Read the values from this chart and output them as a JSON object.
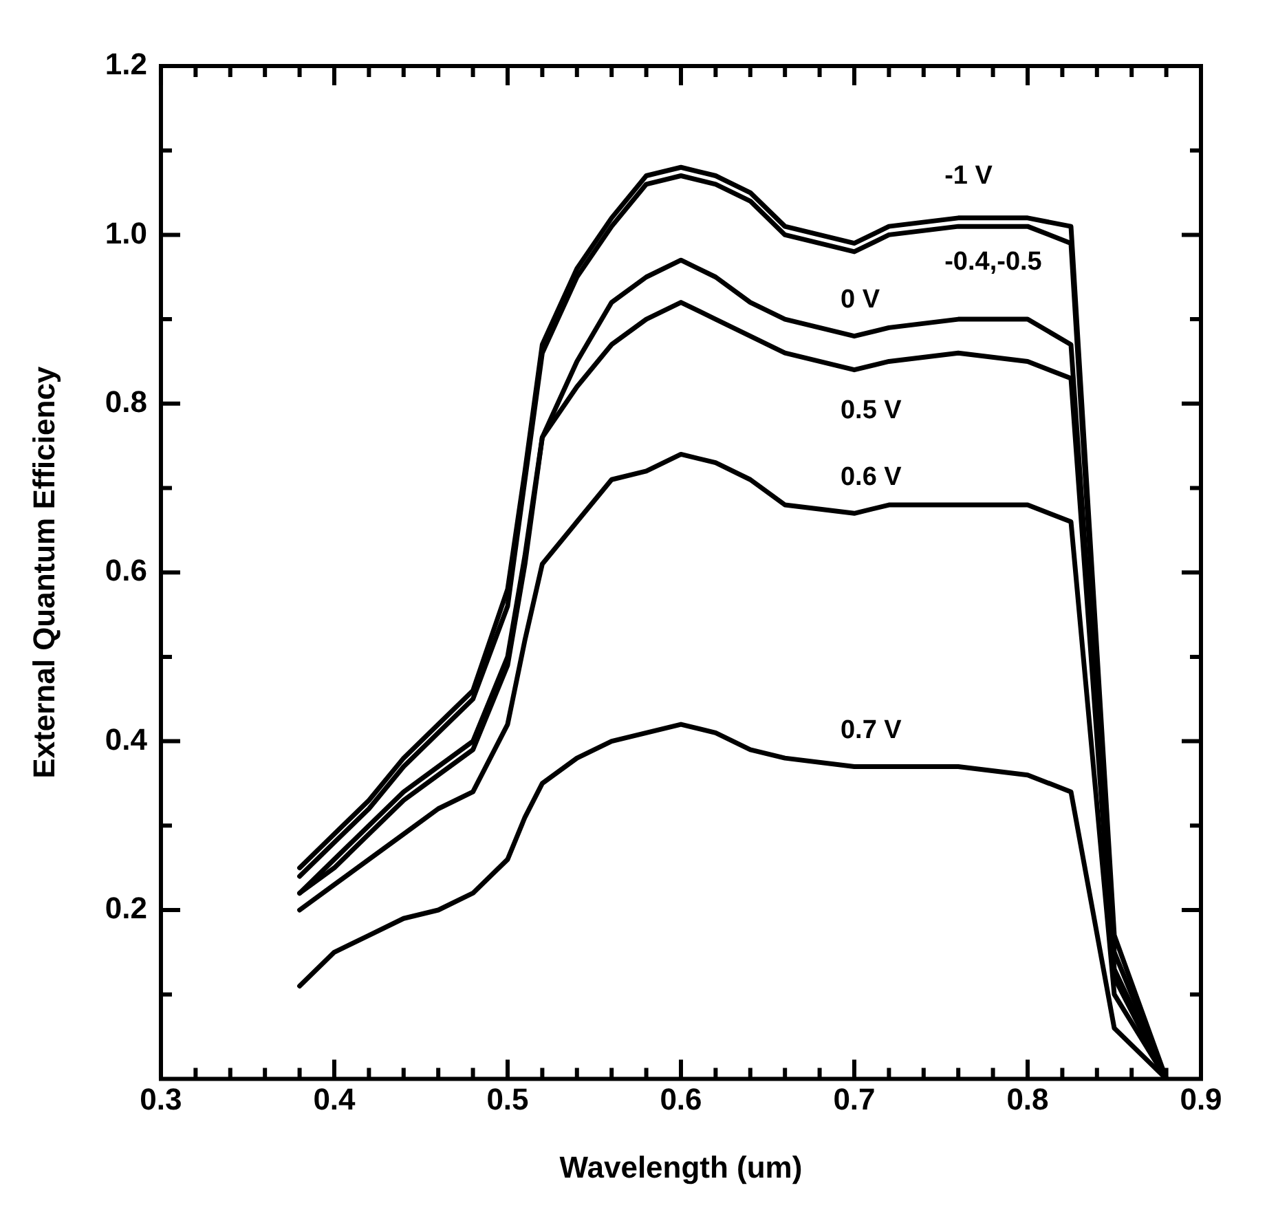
{
  "chart_data": {
    "type": "line",
    "xlabel": "Wavelength (um)",
    "ylabel": "External Quantum Efficiency",
    "x": [
      0.38,
      0.4,
      0.42,
      0.44,
      0.46,
      0.48,
      0.5,
      0.51,
      0.52,
      0.54,
      0.56,
      0.58,
      0.6,
      0.62,
      0.64,
      0.66,
      0.7,
      0.72,
      0.76,
      0.8,
      0.825,
      0.85,
      0.88
    ],
    "series": [
      {
        "name": "-1 V",
        "color": "#000000",
        "values": [
          0.25,
          0.29,
          0.33,
          0.38,
          0.42,
          0.46,
          0.58,
          0.72,
          0.87,
          0.96,
          1.02,
          1.07,
          1.08,
          1.07,
          1.05,
          1.01,
          0.99,
          1.01,
          1.02,
          1.02,
          1.01,
          0.17,
          0
        ]
      },
      {
        "name": "-0.4,-0.5",
        "color": "#000000",
        "values": [
          0.24,
          0.28,
          0.32,
          0.37,
          0.41,
          0.45,
          0.56,
          0.71,
          0.86,
          0.95,
          1.01,
          1.06,
          1.07,
          1.06,
          1.04,
          1,
          0.98,
          1,
          1.01,
          1.01,
          0.99,
          0.15,
          0
        ]
      },
      {
        "name": "0 V",
        "color": "#000000",
        "values": [
          0.22,
          0.26,
          0.3,
          0.34,
          0.37,
          0.4,
          0.5,
          0.62,
          0.76,
          0.85,
          0.92,
          0.95,
          0.97,
          0.95,
          0.92,
          0.9,
          0.88,
          0.89,
          0.9,
          0.9,
          0.87,
          0.13,
          0
        ]
      },
      {
        "name": "0.5 V",
        "color": "#000000",
        "values": [
          0.22,
          0.25,
          0.29,
          0.33,
          0.36,
          0.39,
          0.49,
          0.61,
          0.76,
          0.82,
          0.87,
          0.9,
          0.92,
          0.9,
          0.88,
          0.86,
          0.84,
          0.85,
          0.86,
          0.85,
          0.83,
          0.12,
          0
        ]
      },
      {
        "name": "0.6 V",
        "color": "#000000",
        "values": [
          0.2,
          0.23,
          0.26,
          0.29,
          0.32,
          0.34,
          0.42,
          0.52,
          0.61,
          0.66,
          0.71,
          0.72,
          0.74,
          0.73,
          0.71,
          0.68,
          0.67,
          0.68,
          0.68,
          0.68,
          0.66,
          0.1,
          0
        ]
      },
      {
        "name": "0.7 V",
        "color": "#000000",
        "values": [
          0.11,
          0.15,
          0.17,
          0.19,
          0.2,
          0.22,
          0.26,
          0.31,
          0.35,
          0.38,
          0.4,
          0.41,
          0.42,
          0.41,
          0.39,
          0.38,
          0.37,
          0.37,
          0.37,
          0.36,
          0.34,
          0.06,
          0
        ]
      }
    ],
    "xlim": [
      0.3,
      0.9
    ],
    "xticks": [
      0.3,
      {
        "value": 0.32,
        "label": null
      },
      {
        "value": 0.34,
        "label": null
      },
      {
        "value": 0.36,
        "label": null
      },
      {
        "value": 0.38,
        "label": null
      },
      0.4,
      {
        "value": 0.42,
        "label": null
      },
      {
        "value": 0.44,
        "label": null
      },
      {
        "value": 0.46,
        "label": null
      },
      {
        "value": 0.48,
        "label": null
      },
      0.5,
      {
        "value": 0.52,
        "label": null
      },
      {
        "value": 0.54,
        "label": null
      },
      {
        "value": 0.56,
        "label": null
      },
      {
        "value": 0.58,
        "label": null
      },
      0.6,
      {
        "value": 0.62,
        "label": null
      },
      {
        "value": 0.64,
        "label": null
      },
      {
        "value": 0.66,
        "label": null
      },
      {
        "value": 0.68,
        "label": null
      },
      0.7,
      {
        "value": 0.72,
        "label": null
      },
      {
        "value": 0.74,
        "label": null
      },
      {
        "value": 0.76,
        "label": null
      },
      {
        "value": 0.78,
        "label": null
      },
      0.8,
      {
        "value": 0.82,
        "label": null
      },
      {
        "value": 0.84,
        "label": null
      },
      {
        "value": 0.86,
        "label": null
      },
      {
        "value": 0.88,
        "label": null
      },
      0.9
    ],
    "ylim": [
      0,
      1.2
    ],
    "yticks": [
      {
        "value": 0.1,
        "label": null
      },
      0.2,
      {
        "value": 0.3,
        "label": null
      },
      0.4,
      {
        "value": 0.5,
        "label": null
      },
      0.6,
      {
        "value": 0.7,
        "label": null
      },
      0.8,
      {
        "value": 0.9,
        "label": null
      },
      {
        "value": 1,
        "label": "1.0"
      },
      {
        "value": 1.1,
        "label": null
      },
      1.2
    ],
    "grid": false,
    "legend": false,
    "marker": "none",
    "line_style": "solid"
  }
}
